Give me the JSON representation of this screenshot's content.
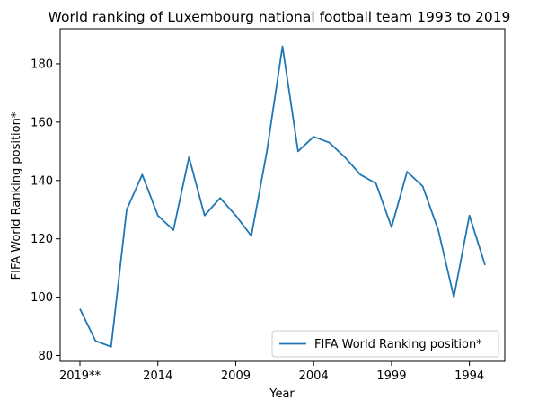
{
  "chart_data": {
    "type": "line",
    "title": "World ranking of Luxembourg national football team 1993 to 2019",
    "xlabel": "Year",
    "ylabel": "FIFA World Ranking position*",
    "x": [
      "2019**",
      "2018",
      "2017",
      "2016",
      "2015",
      "2014",
      "2013",
      "2012",
      "2011",
      "2010",
      "2009",
      "2008",
      "2007",
      "2006",
      "2005",
      "2004",
      "2003",
      "2002",
      "2001",
      "2000",
      "1999",
      "1998",
      "1997",
      "1996",
      "1995",
      "1994",
      "1993"
    ],
    "xticks": [
      "2019**",
      "2014",
      "2009",
      "2004",
      "1999",
      "1994"
    ],
    "yticks": [
      "80",
      "100",
      "120",
      "140",
      "160",
      "180"
    ],
    "ylim": [
      78,
      192
    ],
    "series": [
      {
        "name": "FIFA World Ranking position*",
        "color": "#1f77b4",
        "values": [
          96,
          85,
          83,
          130,
          142,
          128,
          123,
          148,
          128,
          134,
          128,
          121,
          150,
          186,
          150,
          155,
          153,
          148,
          142,
          139,
          124,
          143,
          138,
          123,
          100,
          128,
          111
        ]
      }
    ],
    "legend_position": "lower-right",
    "grid": false
  }
}
